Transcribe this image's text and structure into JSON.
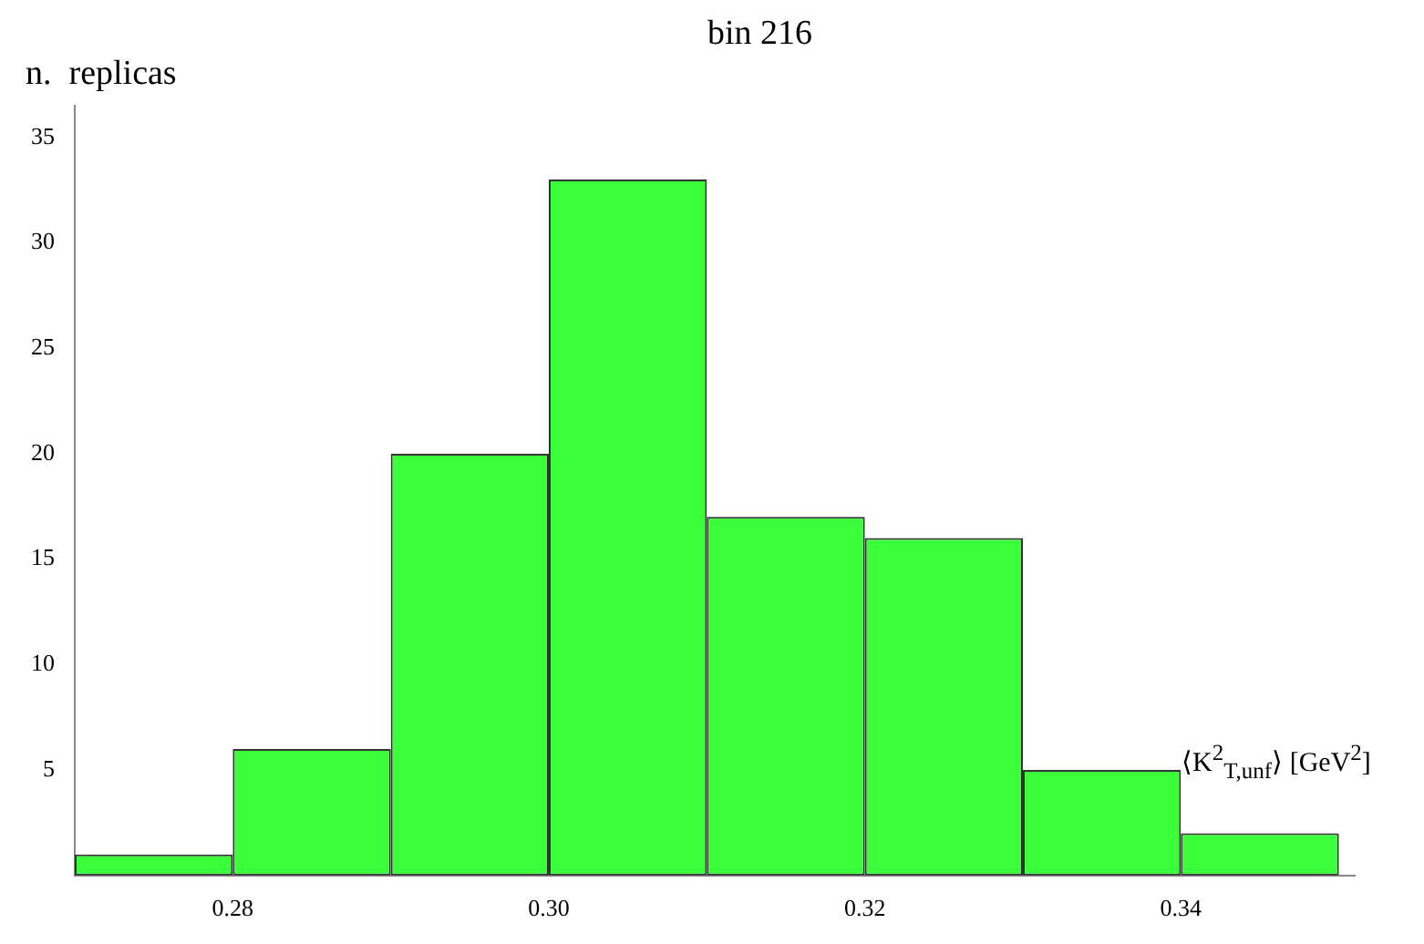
{
  "chart_data": {
    "type": "histogram",
    "title": "bin 216",
    "ylabel": "n.  replicas",
    "xlabel": "⟨K$^{2}$$_{T,unf}$⟩ [GeV$^{2}$]",
    "bins": [
      0.27,
      0.28,
      0.29,
      0.3,
      0.31,
      0.32,
      0.33,
      0.34,
      0.35
    ],
    "values": [
      1,
      6,
      20,
      33,
      17,
      16,
      5,
      2
    ],
    "color": "#3cff3c",
    "xlim": [
      0.27,
      0.351
    ],
    "xticks": [
      {
        "value": 0.28,
        "label": "0.28"
      },
      {
        "value": 0.3,
        "label": "0.30"
      },
      {
        "value": 0.32,
        "label": "0.32"
      },
      {
        "value": 0.34,
        "label": "0.34"
      }
    ],
    "ylim": [
      0,
      36.5
    ],
    "yticks": [
      5,
      10,
      15,
      20,
      25,
      30,
      35
    ],
    "grid": false
  }
}
